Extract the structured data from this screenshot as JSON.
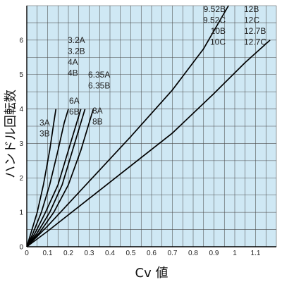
{
  "chart_data": {
    "type": "line",
    "title": "",
    "xlabel": "Cv 値",
    "ylabel": "ハンドル回転数",
    "xlim": [
      0,
      1.2
    ],
    "ylim": [
      0,
      7
    ],
    "grid": true,
    "background_color": "#cfe8f4",
    "grid_color": "#4a4a4a",
    "line_color": "#000000",
    "x_ticks": [
      "0",
      "0.1",
      "0.2",
      "0.3",
      "0.4",
      "0.5",
      "0.6",
      "0.7",
      "0.8",
      "0.9",
      "1",
      "1.1"
    ],
    "y_ticks": [
      "0",
      "1",
      "2",
      "3",
      "4",
      "5",
      "6"
    ],
    "series": [
      {
        "name": "3A 3B",
        "labels": [
          "3A",
          "3B"
        ],
        "x": [
          0,
          0.02,
          0.05,
          0.08,
          0.11,
          0.13,
          0.14
        ],
        "y": [
          0,
          0.4,
          1.0,
          1.8,
          2.8,
          3.6,
          4.0
        ]
      },
      {
        "name": "3.2A 3.2B 4A 4B",
        "labels": [
          "3.2A",
          "3.2B",
          "4A",
          "4B"
        ],
        "x": [
          0,
          0.03,
          0.07,
          0.11,
          0.15,
          0.18,
          0.2
        ],
        "y": [
          0,
          0.4,
          1.0,
          1.8,
          2.8,
          3.6,
          4.0
        ]
      },
      {
        "name": "6A 6B",
        "labels": [
          "6A",
          "6B"
        ],
        "x": [
          0,
          0.04,
          0.09,
          0.15,
          0.2,
          0.24,
          0.26
        ],
        "y": [
          0,
          0.4,
          1.0,
          1.8,
          2.8,
          3.6,
          4.0
        ]
      },
      {
        "name": "6.35A 6.35B",
        "labels": [
          "6.35A",
          "6.35B"
        ],
        "x": [
          0,
          0.05,
          0.11,
          0.17,
          0.22,
          0.26,
          0.28
        ],
        "y": [
          0,
          0.4,
          1.0,
          1.8,
          2.8,
          3.6,
          4.0
        ]
      },
      {
        "name": "8A 8B",
        "labels": [
          "8A",
          "8B"
        ],
        "x": [
          0,
          0.06,
          0.13,
          0.2,
          0.26,
          0.3,
          0.32
        ],
        "y": [
          0,
          0.4,
          1.0,
          1.8,
          2.8,
          3.6,
          4.0
        ]
      },
      {
        "name": "9.52B 9.52C 10B 10C",
        "labels": [
          "9.52B",
          "9.52C",
          "10B",
          "10C"
        ],
        "x": [
          0,
          0.1,
          0.3,
          0.5,
          0.7,
          0.85,
          0.97
        ],
        "y": [
          0,
          0.6,
          1.9,
          3.2,
          4.55,
          5.75,
          7.0
        ]
      },
      {
        "name": "12B 12C 12.7B 12.7C",
        "labels": [
          "12B",
          "12C",
          "12.7B",
          "12.7C"
        ],
        "x": [
          0,
          0.1,
          0.3,
          0.5,
          0.7,
          0.9,
          1.05,
          1.17
        ],
        "y": [
          0,
          0.45,
          1.4,
          2.35,
          3.3,
          4.45,
          5.35,
          6.0
        ]
      }
    ]
  }
}
